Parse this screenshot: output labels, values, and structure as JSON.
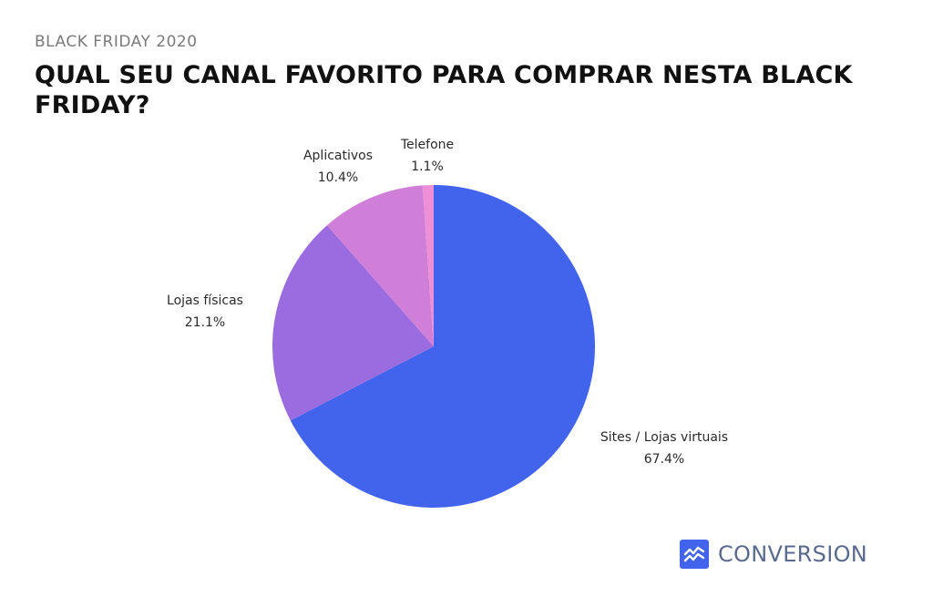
{
  "header": {
    "kicker": "BLACK FRIDAY 2020",
    "title": "QUAL SEU CANAL FAVORITO PARA COMPRAR NESTA BLACK FRIDAY?"
  },
  "chart_data": {
    "type": "pie",
    "title": "QUAL SEU CANAL FAVORITO PARA COMPRAR NESTA BLACK FRIDAY?",
    "start_angle_deg": 0,
    "direction": "clockwise",
    "slices": [
      {
        "label": "Sites / Lojas virtuais",
        "value": 67.4,
        "value_label": "67.4%",
        "color": "#4263eb"
      },
      {
        "label": "Lojas físicas",
        "value": 21.1,
        "value_label": "21.1%",
        "color": "#9b6be0"
      },
      {
        "label": "Aplicativos",
        "value": 10.4,
        "value_label": "10.4%",
        "color": "#d07fd8"
      },
      {
        "label": "Telefone",
        "value": 1.1,
        "value_label": "1.1%",
        "color": "#ee8fd8"
      }
    ]
  },
  "brand": {
    "name": "CONVERSION",
    "icon": "chart-trend-icon",
    "icon_color": "#4263eb",
    "text_color": "#5a6a8e"
  }
}
